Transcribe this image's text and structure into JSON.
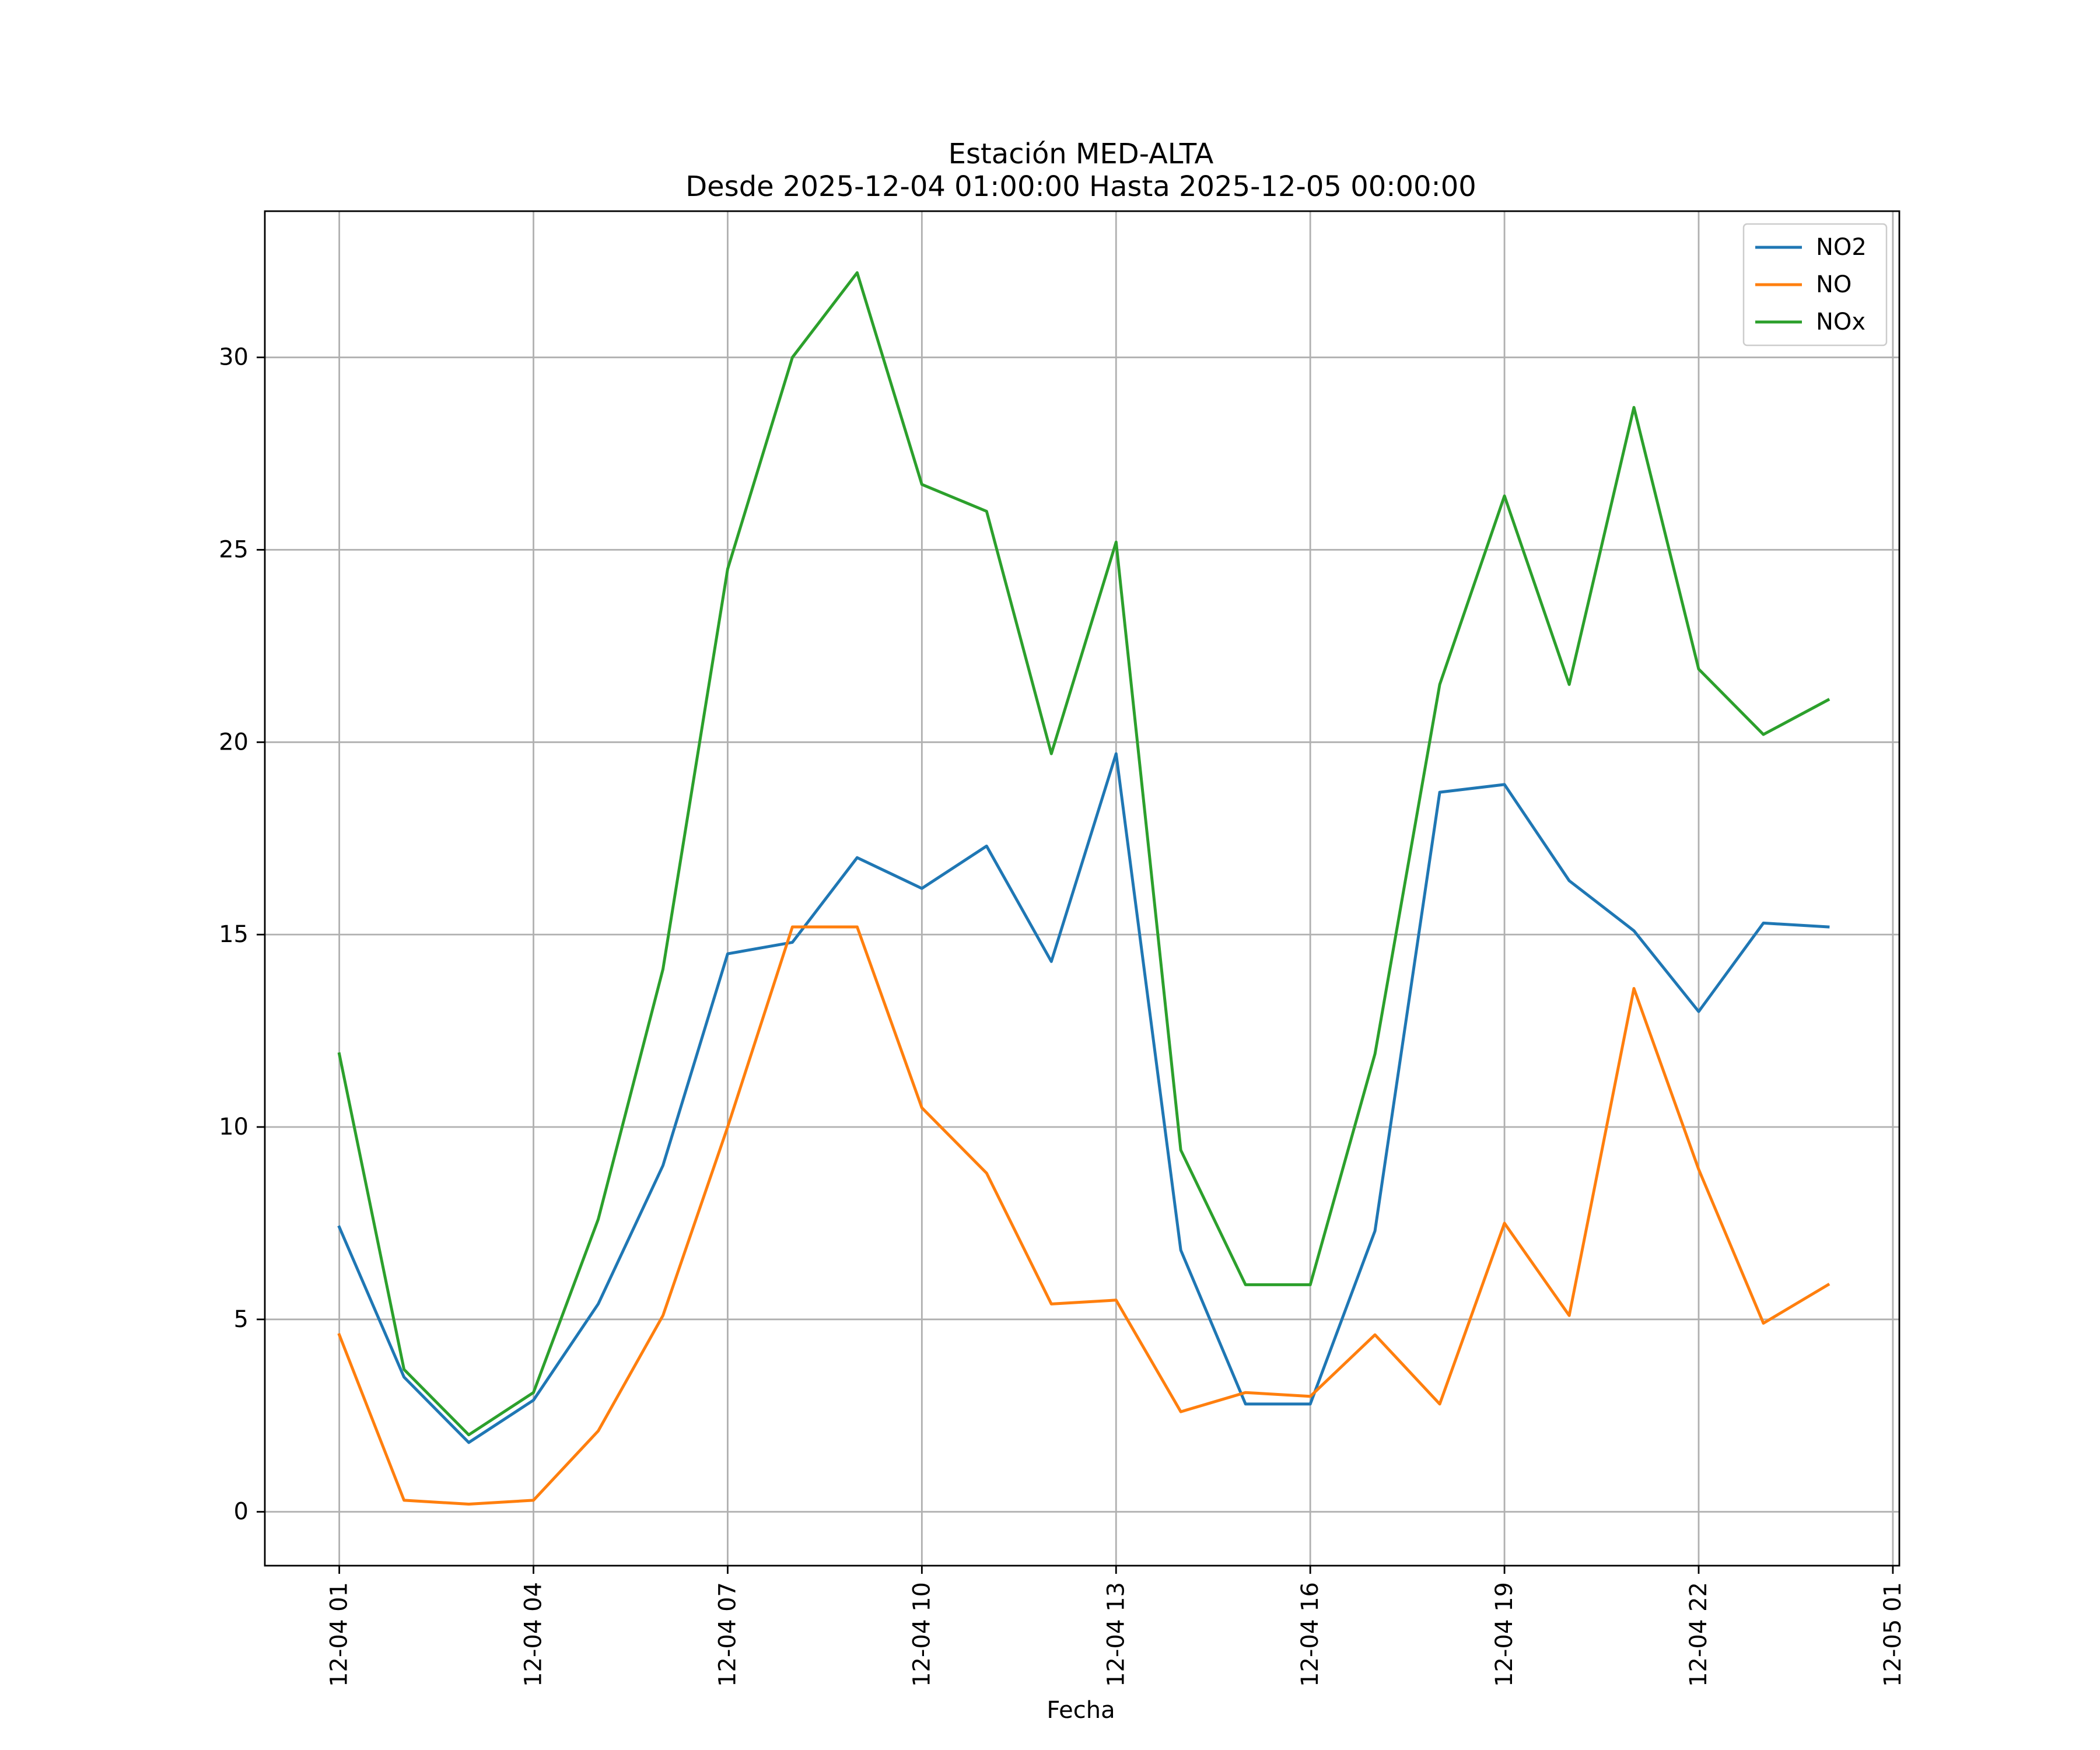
{
  "chart_data": {
    "type": "line",
    "title": "Estación MED-ALTA",
    "subtitle": "Desde 2025-12-04 01:00:00 Hasta 2025-12-05 00:00:00",
    "xlabel": "Fecha",
    "ylabel": "",
    "x": [
      "01:00",
      "02:00",
      "03:00",
      "04:00",
      "05:00",
      "06:00",
      "07:00",
      "08:00",
      "09:00",
      "10:00",
      "11:00",
      "12:00",
      "13:00",
      "14:00",
      "15:00",
      "16:00",
      "17:00",
      "18:00",
      "19:00",
      "20:00",
      "21:00",
      "22:00",
      "23:00",
      "24:00"
    ],
    "x_hours": [
      1,
      2,
      3,
      4,
      5,
      6,
      7,
      8,
      9,
      10,
      11,
      12,
      13,
      14,
      15,
      16,
      17,
      18,
      19,
      20,
      21,
      22,
      23,
      24
    ],
    "xlim": [
      -0.15,
      25.1
    ],
    "ylim": [
      -1.4,
      33.8
    ],
    "xticks": [
      {
        "hour": 1,
        "label": "12-04 01"
      },
      {
        "hour": 4,
        "label": "12-04 04"
      },
      {
        "hour": 7,
        "label": "12-04 07"
      },
      {
        "hour": 10,
        "label": "12-04 10"
      },
      {
        "hour": 13,
        "label": "12-04 13"
      },
      {
        "hour": 16,
        "label": "12-04 16"
      },
      {
        "hour": 19,
        "label": "12-04 19"
      },
      {
        "hour": 22,
        "label": "12-04 22"
      },
      {
        "hour": 25,
        "label": "12-05 01"
      }
    ],
    "yticks": [
      {
        "value": 0,
        "label": "0"
      },
      {
        "value": 5,
        "label": "5"
      },
      {
        "value": 10,
        "label": "10"
      },
      {
        "value": 15,
        "label": "15"
      },
      {
        "value": 20,
        "label": "20"
      },
      {
        "value": 25,
        "label": "25"
      },
      {
        "value": 30,
        "label": "30"
      }
    ],
    "grid": true,
    "legend_position": "top-right",
    "series": [
      {
        "name": "NO2",
        "color": "#1f77b4",
        "values": [
          7.4,
          3.5,
          1.8,
          2.9,
          5.4,
          9.0,
          14.5,
          14.8,
          17.0,
          16.2,
          17.3,
          14.3,
          19.7,
          6.8,
          2.8,
          2.8,
          7.3,
          18.7,
          18.9,
          16.4,
          15.1,
          13.0,
          15.3,
          15.2
        ]
      },
      {
        "name": "NO",
        "color": "#ff7f0e",
        "values": [
          4.6,
          0.3,
          0.2,
          0.3,
          2.1,
          5.1,
          10.0,
          15.2,
          15.2,
          10.5,
          8.8,
          5.4,
          5.5,
          2.6,
          3.1,
          3.0,
          4.6,
          2.8,
          7.5,
          5.1,
          13.6,
          8.9,
          4.9,
          5.9
        ]
      },
      {
        "name": "NOx",
        "color": "#2ca02c",
        "values": [
          11.9,
          3.7,
          2.0,
          3.1,
          7.6,
          14.1,
          24.5,
          30.0,
          32.2,
          26.7,
          26.0,
          19.7,
          25.2,
          9.4,
          5.9,
          5.9,
          11.9,
          21.5,
          26.4,
          21.5,
          28.7,
          21.9,
          20.2,
          21.1
        ]
      }
    ]
  }
}
